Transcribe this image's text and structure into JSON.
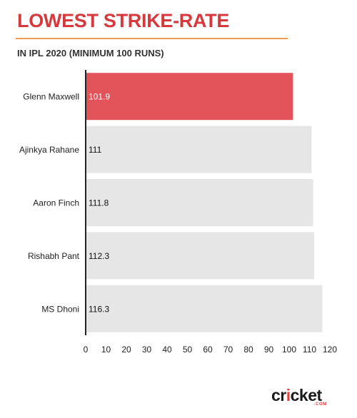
{
  "header": {
    "title": "LOWEST STRIKE-RATE",
    "subtitle": "IN IPL 2020 (MINIMUM 100 RUNS)"
  },
  "logo": {
    "word_prefix": "cr",
    "word_dot": "i",
    "word_suffix": "cket",
    "sub": ".COM"
  },
  "chart_data": {
    "type": "bar",
    "orientation": "horizontal",
    "categories": [
      "Glenn Maxwell",
      "Ajinkya Rahane",
      "Aaron Finch",
      "Rishabh Pant",
      "MS Dhoni"
    ],
    "values": [
      101.9,
      111,
      111.8,
      112.3,
      116.3
    ],
    "value_labels": [
      "101.9",
      "111",
      "111.8",
      "112.3",
      "116.3"
    ],
    "xlim": [
      0,
      120
    ],
    "xticks": [
      0,
      10,
      20,
      30,
      40,
      50,
      60,
      70,
      80,
      90,
      100,
      110,
      120
    ],
    "grid": false,
    "highlight_index": 0,
    "colors": {
      "highlight": "#e2535a",
      "default": "#e6e6e6",
      "axis": "#222222"
    }
  }
}
